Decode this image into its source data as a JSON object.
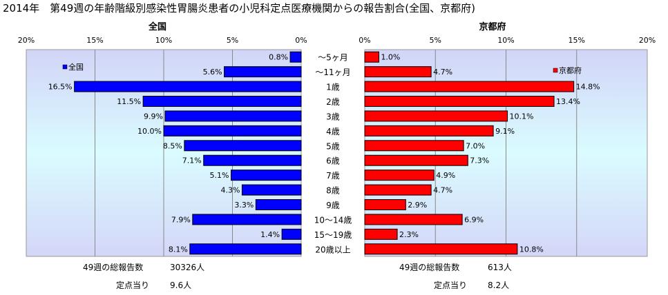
{
  "title": "2014年　第49週の年齢階級別感染性胃腸炎患者の小児科定点医療機関からの報告割合(全国、京都府)",
  "chart_data": [
    {
      "type": "bar",
      "orientation": "horizontal",
      "title": "全国",
      "legend": "全国",
      "legend_position": "top-left",
      "xlim": [
        0,
        20
      ],
      "x_reversed": true,
      "ticks": [
        "20%",
        "15%",
        "10%",
        "5%",
        "0%"
      ],
      "categories": [
        "～5ヶ月",
        "～11ヶ月",
        "1歳",
        "2歳",
        "3歳",
        "4歳",
        "5歳",
        "6歳",
        "7歳",
        "8歳",
        "9歳",
        "10～14歳",
        "15～19歳",
        "20歳以上"
      ],
      "values": [
        0.8,
        5.6,
        16.5,
        11.5,
        9.9,
        10.0,
        8.5,
        7.1,
        5.1,
        4.3,
        3.3,
        7.9,
        1.4,
        8.1
      ],
      "labels": [
        "0.8%",
        "5.6%",
        "16.5%",
        "11.5%",
        "9.9%",
        "10.0%",
        "8.5%",
        "7.1%",
        "5.1%",
        "4.3%",
        "3.3%",
        "7.9%",
        "1.4%",
        "8.1%"
      ],
      "color": "#0000ff",
      "summary": {
        "total_label": "49週の総報告数",
        "total_value": "30326人",
        "per_label": "定点当り",
        "per_value": "9.6人"
      }
    },
    {
      "type": "bar",
      "orientation": "horizontal",
      "title": "京都府",
      "legend": "京都府",
      "legend_position": "top-right",
      "xlim": [
        0,
        20
      ],
      "x_reversed": false,
      "ticks": [
        "0%",
        "5%",
        "10%",
        "15%",
        "20%"
      ],
      "categories": [
        "～5ヶ月",
        "～11ヶ月",
        "1歳",
        "2歳",
        "3歳",
        "4歳",
        "5歳",
        "6歳",
        "7歳",
        "8歳",
        "9歳",
        "10～14歳",
        "15～19歳",
        "20歳以上"
      ],
      "values": [
        1.0,
        4.7,
        14.8,
        13.4,
        10.1,
        9.1,
        7.0,
        7.3,
        4.9,
        4.7,
        2.9,
        6.9,
        2.3,
        10.8
      ],
      "labels": [
        "1.0%",
        "4.7%",
        "14.8%",
        "13.4%",
        "10.1%",
        "9.1%",
        "7.0%",
        "7.3%",
        "4.9%",
        "4.7%",
        "2.9%",
        "6.9%",
        "2.3%",
        "10.8%"
      ],
      "color": "#ff0000",
      "summary": {
        "total_label": "49週の総報告数",
        "total_value": "613人",
        "per_label": "定点当り",
        "per_value": "8.2人"
      }
    }
  ]
}
